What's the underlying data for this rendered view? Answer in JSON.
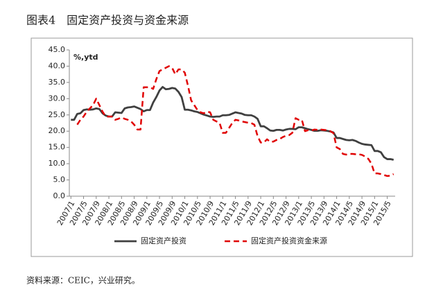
{
  "chart_data": {
    "type": "line",
    "title": "图表4　固定资产投资与资金来源",
    "y_label": "%,ytd",
    "source": "资料来源：CEIC，兴业研究。",
    "categories": [
      "2007/1",
      null,
      null,
      null,
      "2007/5",
      null,
      null,
      null,
      "2007/9",
      null,
      null,
      null,
      "2008/1",
      null,
      null,
      null,
      "2008/5",
      null,
      null,
      null,
      "2008/9",
      null,
      null,
      null,
      "2009/1",
      null,
      null,
      null,
      "2009/5",
      null,
      null,
      null,
      "2009/9",
      null,
      null,
      null,
      "2010/1",
      null,
      null,
      null,
      "2010/5",
      null,
      null,
      null,
      "2010/9",
      null,
      null,
      null,
      "2011/1",
      null,
      null,
      null,
      "2011/5",
      null,
      null,
      null,
      "2011/9",
      null,
      null,
      null,
      "2012/1",
      null,
      null,
      null,
      "2012/5",
      null,
      null,
      null,
      "2012/9",
      null,
      null,
      null,
      "2013/1",
      null,
      null,
      null,
      "2013/5",
      null,
      null,
      null,
      "2013/9",
      null,
      null,
      null,
      "2014/1",
      null,
      null,
      null,
      "2014/5",
      null,
      null,
      null,
      "2014/9",
      null,
      null,
      null,
      "2015/1",
      null,
      null,
      null,
      "2015/5",
      null,
      null
    ],
    "series": [
      {
        "name": "固定资产投资",
        "color": "#404040",
        "dash": false,
        "values": [
          23.5,
          23.5,
          25.3,
          25.5,
          26.5,
          26.7,
          26.6,
          26.7,
          27,
          26.8,
          25.5,
          24.8,
          24.5,
          24.5,
          25.8,
          25.7,
          25.6,
          27,
          27.3,
          27.4,
          27.6,
          27.2,
          26.8,
          26.1,
          26.5,
          26.5,
          28.8,
          30.5,
          32.5,
          33.6,
          32.9,
          33,
          33.3,
          33.1,
          32.1,
          30.5,
          26.6,
          26.6,
          26.4,
          26.1,
          25.9,
          25.5,
          25.1,
          24.8,
          24.5,
          24.4,
          24.5,
          24.5,
          24.9,
          24.9,
          25,
          25.4,
          25.8,
          25.6,
          25.4,
          25,
          24.9,
          24.9,
          24.5,
          23.8,
          21.5,
          21.5,
          20.9,
          20.2,
          20.1,
          20.4,
          20.4,
          20.2,
          20.5,
          20.7,
          20.7,
          20.6,
          21.2,
          21.2,
          20.9,
          20.6,
          20.4,
          20.1,
          20.1,
          20.3,
          20.2,
          20.1,
          19.9,
          19.6,
          17.9,
          17.9,
          17.6,
          17.3,
          17.2,
          17.3,
          17,
          16.5,
          16.1,
          15.9,
          15.8,
          15.7,
          13.9,
          13.9,
          13.5,
          12,
          11.4,
          11.4,
          11.2
        ]
      },
      {
        "name": "固定资产投资资金来源",
        "color": "#e00000",
        "dash": true,
        "values": [
          null,
          null,
          22,
          23.5,
          24.5,
          26,
          27,
          28,
          30,
          28,
          26,
          24.5,
          24.5,
          24.5,
          23.5,
          23.8,
          24.2,
          23.8,
          23.5,
          23,
          22,
          20.5,
          20.5,
          33.5,
          33.5,
          33.5,
          33,
          36,
          38.5,
          39,
          39.5,
          40,
          39.5,
          37.5,
          39,
          39,
          38,
          34,
          29.5,
          28,
          26.5,
          25.8,
          25.5,
          26,
          25.8,
          23.5,
          23,
          22.5,
          19.5,
          19.5,
          21,
          22.5,
          23.5,
          23.3,
          23,
          22.8,
          22.6,
          22.5,
          22,
          18.5,
          16.5,
          16.5,
          17.5,
          16.7,
          16.8,
          17.3,
          17.6,
          18.2,
          18.6,
          18.8,
          19.5,
          24,
          23.5,
          23.5,
          20,
          20.3,
          20.2,
          20.5,
          20.4,
          20.5,
          20.4,
          20.3,
          20,
          19.4,
          15,
          14.5,
          13,
          12.8,
          13,
          13,
          12.9,
          12.9,
          12.7,
          12.2,
          11.5,
          10,
          7,
          7,
          6.8,
          6.5,
          6.2,
          6.3,
          6.8
        ]
      }
    ],
    "ylim": [
      0,
      45
    ],
    "yticks": [
      {
        "value": 0,
        "label": "0.0"
      },
      {
        "value": 5,
        "label": "5.0"
      },
      {
        "value": 10,
        "label": "10.0"
      },
      {
        "value": 15,
        "label": "15.0"
      },
      {
        "value": 20,
        "label": "20.0"
      },
      {
        "value": 25,
        "label": "25.0"
      },
      {
        "value": 30,
        "label": "30.0"
      },
      {
        "value": 35,
        "label": "35.0"
      },
      {
        "value": 40,
        "label": "40.0"
      },
      {
        "value": 45,
        "label": "45.0"
      }
    ],
    "grid": false,
    "legend": "bottom"
  }
}
